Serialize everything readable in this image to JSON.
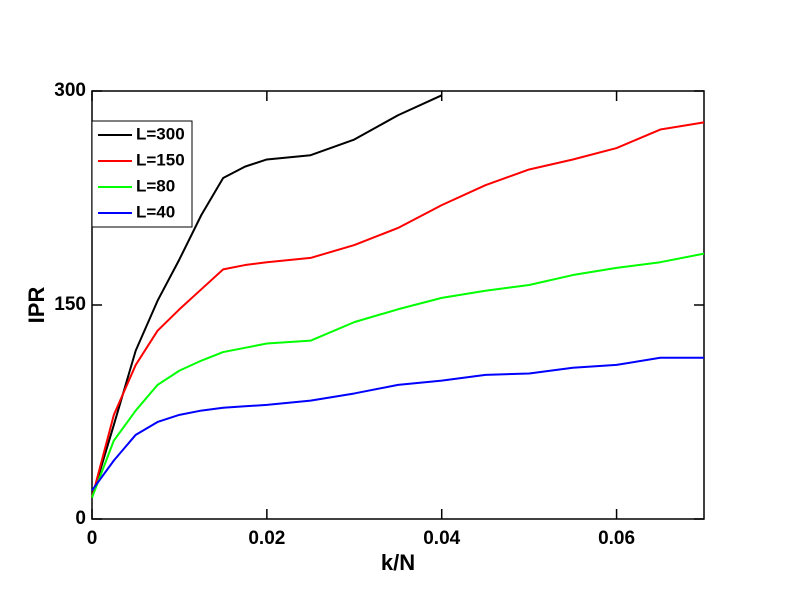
{
  "chart_data": {
    "type": "line",
    "x_label": "k/N",
    "y_label": "IPR",
    "x": [
      0,
      0.0025,
      0.005,
      0.0075,
      0.01,
      0.0125,
      0.015,
      0.0175,
      0.02,
      0.025,
      0.03,
      0.035,
      0.04,
      0.045,
      0.05,
      0.055,
      0.06,
      0.065,
      0.07
    ],
    "series": [
      {
        "name": "L=300",
        "color": "#000000",
        "values": [
          15,
          66,
          118,
          153,
          182,
          213,
          239,
          247,
          252,
          255,
          266,
          283,
          297,
          null,
          null,
          null,
          null,
          null,
          null
        ]
      },
      {
        "name": "L=150",
        "color": "#ff0000",
        "values": [
          15,
          73,
          108,
          132,
          147,
          161,
          175,
          178,
          180,
          183,
          192,
          204,
          220,
          234,
          245,
          252,
          260,
          273,
          278
        ]
      },
      {
        "name": "L=80",
        "color": "#00ff00",
        "values": [
          15,
          55,
          76,
          94,
          104,
          111,
          117,
          120,
          123,
          125,
          138,
          147,
          155,
          160,
          164,
          171,
          176,
          180,
          186
        ]
      },
      {
        "name": "L=40",
        "color": "#0000ff",
        "values": [
          20,
          41,
          59,
          68,
          73,
          76,
          78,
          79,
          80,
          83,
          88,
          94,
          97,
          101,
          102,
          106,
          108,
          113,
          113
        ]
      }
    ],
    "xlim": [
      0,
      0.07
    ],
    "ylim": [
      0,
      300
    ],
    "xticks": [
      0,
      0.02,
      0.04,
      0.06
    ],
    "yticks": [
      0,
      150,
      300
    ],
    "legend": "upper-left"
  }
}
